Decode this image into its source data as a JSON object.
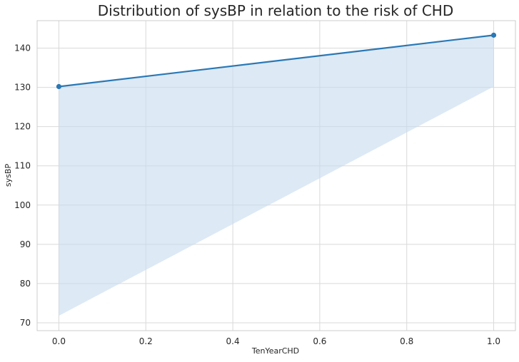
{
  "chart_data": {
    "type": "line",
    "title": "Distribution of sysBP in relation to the risk of CHD",
    "xlabel": "TenYearCHD",
    "ylabel": "sysBP",
    "xlim": [
      -0.05,
      1.05
    ],
    "ylim": [
      68,
      147
    ],
    "x_ticks": [
      0.0,
      0.2,
      0.4,
      0.6,
      0.8,
      1.0
    ],
    "x_tick_labels": [
      "0.0",
      "0.2",
      "0.4",
      "0.6",
      "0.8",
      "1.0"
    ],
    "y_ticks": [
      70,
      80,
      90,
      100,
      110,
      120,
      130,
      140
    ],
    "y_tick_labels": [
      "70",
      "80",
      "90",
      "100",
      "110",
      "120",
      "130",
      "140"
    ],
    "grid": true,
    "series": [
      {
        "x": [
          0.0,
          1.0
        ],
        "y": [
          130.2,
          143.3
        ],
        "color": "#2a78b5",
        "markers": true
      }
    ],
    "band": {
      "x": [
        0.0,
        1.0
      ],
      "upper": [
        130.2,
        143.3
      ],
      "lower": [
        71.8,
        130.2
      ],
      "lower_floor": 130.2,
      "color": "#c6dbef"
    }
  }
}
